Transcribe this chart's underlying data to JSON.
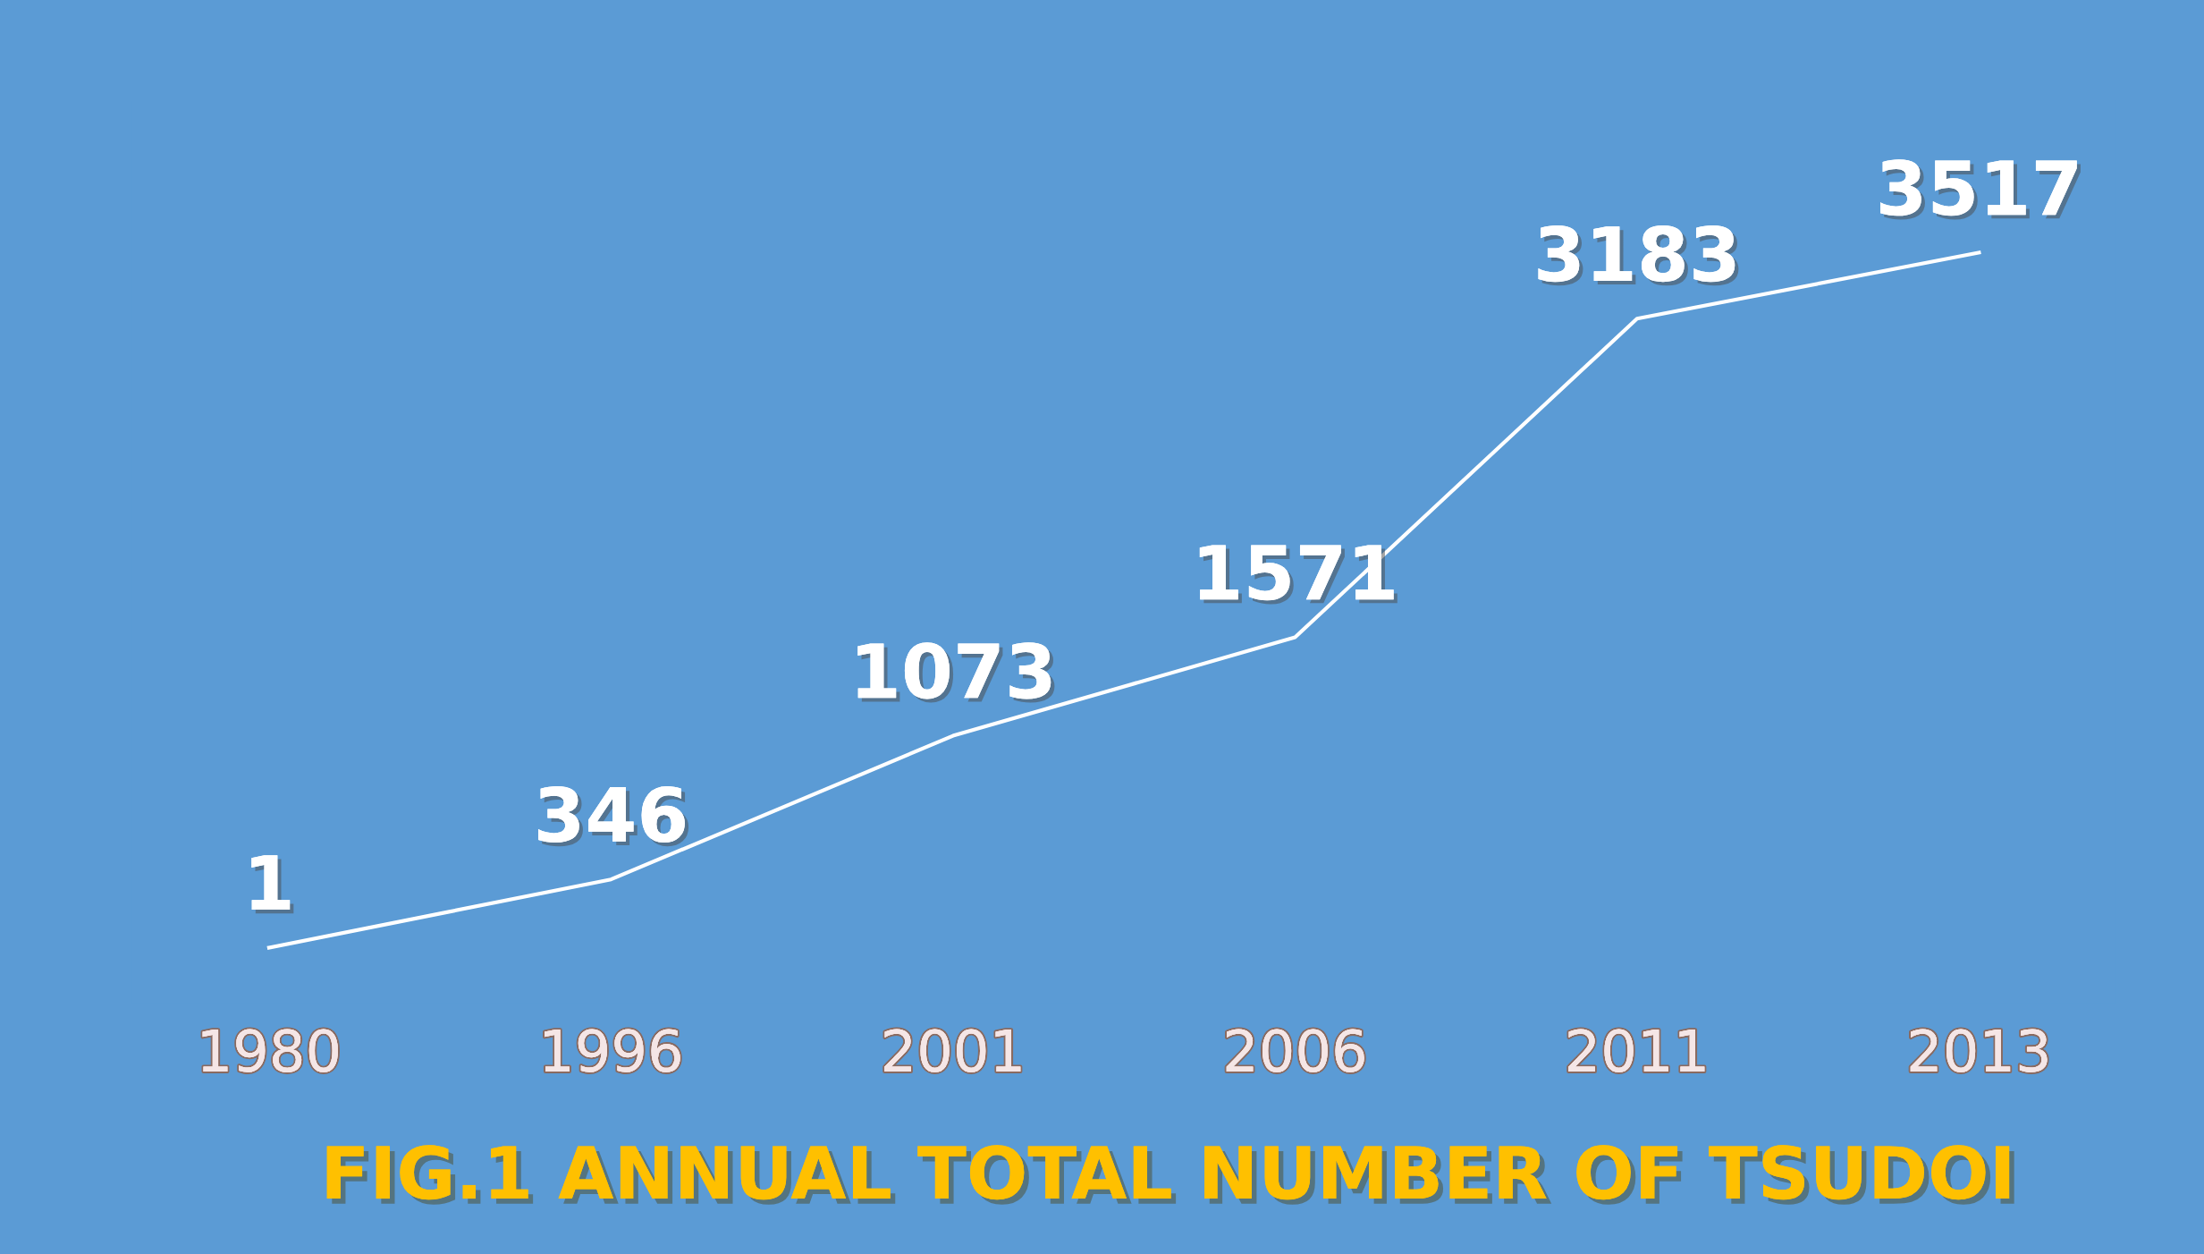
{
  "chart_data": {
    "type": "line",
    "title": "FIG.1 ANNUAL TOTAL NUMBER OF TSUDOI",
    "categories": [
      "1980",
      "1996",
      "2001",
      "2006",
      "2011",
      "2013"
    ],
    "series": [
      {
        "color": "#ffffff",
        "values": [
          1,
          346,
          1073,
          1571,
          3183,
          3517
        ]
      }
    ],
    "data_labels": true,
    "tick_labels": "x",
    "grid": false,
    "legend": false,
    "line_style": "solid"
  }
}
